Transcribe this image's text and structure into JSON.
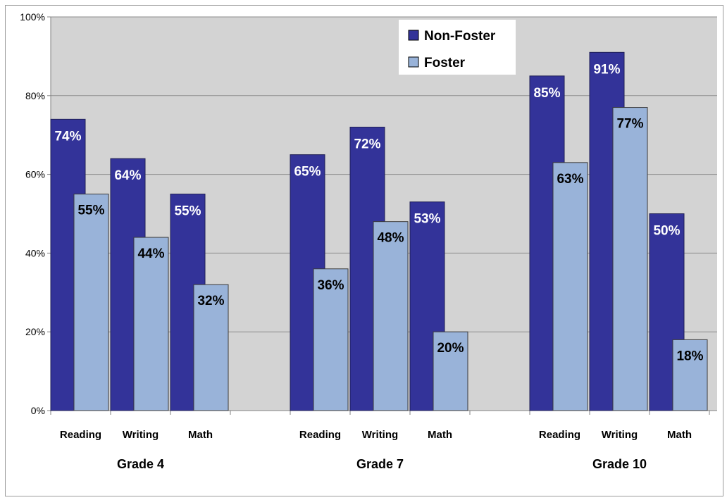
{
  "chart_data": {
    "type": "bar",
    "categories": [
      "Reading",
      "Writing",
      "Math",
      "Reading",
      "Writing",
      "Math",
      "Reading",
      "Writing",
      "Math"
    ],
    "groups": [
      {
        "label": "Grade 4",
        "categories": [
          "Reading",
          "Writing",
          "Math"
        ]
      },
      {
        "label": "Grade 7",
        "categories": [
          "Reading",
          "Writing",
          "Math"
        ]
      },
      {
        "label": "Grade 10",
        "categories": [
          "Reading",
          "Writing",
          "Math"
        ]
      }
    ],
    "series": [
      {
        "name": "Non-Foster",
        "color": "#333399",
        "label_color": "#ffffff",
        "values": [
          74,
          64,
          55,
          65,
          72,
          53,
          85,
          91,
          50
        ]
      },
      {
        "name": "Foster",
        "color": "#99b3d9",
        "label_color": "#000000",
        "values": [
          55,
          44,
          32,
          36,
          48,
          20,
          63,
          77,
          18
        ]
      }
    ],
    "value_labels": {
      "Non-Foster": [
        "74%",
        "64%",
        "55%",
        "65%",
        "72%",
        "53%",
        "85%",
        "91%",
        "50%"
      ],
      "Foster": [
        "55%",
        "44%",
        "32%",
        "36%",
        "48%",
        "20%",
        "63%",
        "77%",
        "18%"
      ]
    },
    "title": "",
    "xlabel": "",
    "ylabel": "",
    "ylim": [
      0,
      100
    ],
    "y_ticks": [
      0,
      20,
      40,
      60,
      80,
      100
    ],
    "y_tick_labels": [
      "0%",
      "20%",
      "40%",
      "60%",
      "80%",
      "100%"
    ],
    "grid": true,
    "plot_background": "#d3d3d3",
    "legend_position": "top-center"
  }
}
